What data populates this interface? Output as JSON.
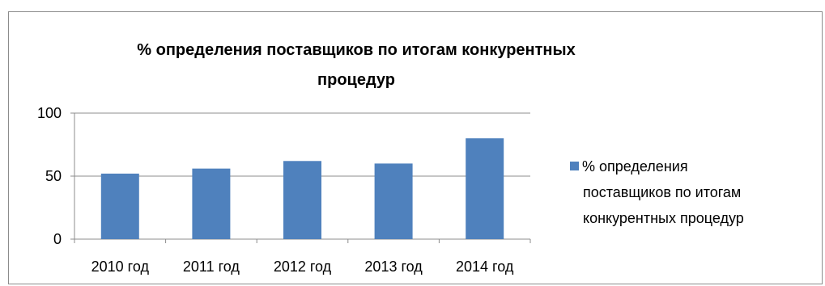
{
  "chart_data": {
    "type": "bar",
    "title": "% определения поставщиков по итогам конкурентных процедур",
    "title_lines": [
      "% определения поставщиков по итогам конкурентных",
      "процедур"
    ],
    "categories": [
      "2010 год",
      "2011 год",
      "2012 год",
      "2013 год",
      "2014 год"
    ],
    "series": [
      {
        "name": "% определения поставщиков по итогам конкурентных процедур",
        "name_lines": [
          "% определения",
          "поставщиков по итогам",
          "конкурентных процедур"
        ],
        "values": [
          52,
          56,
          62,
          60,
          80
        ],
        "color": "#4f81bd"
      }
    ],
    "xlabel": "",
    "ylabel": "",
    "ylim": [
      0,
      100
    ],
    "yticks": [
      0,
      50,
      100
    ],
    "grid": true,
    "legend": "right"
  }
}
